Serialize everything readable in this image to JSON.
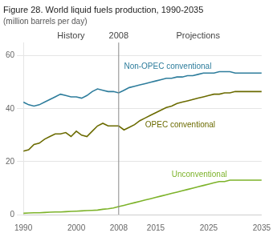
{
  "chart_data": {
    "type": "line",
    "title": "Figure 28. World liquid fuels production, 1990-2035",
    "subtitle": "(million barrels per day)",
    "x": [
      1990,
      1991,
      1992,
      1993,
      1994,
      1995,
      1996,
      1997,
      1998,
      1999,
      2000,
      2001,
      2002,
      2003,
      2004,
      2005,
      2006,
      2007,
      2008,
      2009,
      2010,
      2011,
      2012,
      2013,
      2014,
      2015,
      2016,
      2017,
      2018,
      2019,
      2020,
      2021,
      2022,
      2023,
      2024,
      2025,
      2026,
      2027,
      2028,
      2029,
      2030,
      2031,
      2032,
      2033,
      2034,
      2035
    ],
    "series": [
      {
        "name": "Non-OPEC conventional",
        "color": "#2e7d9c",
        "values": [
          42.5,
          41.5,
          41.0,
          41.5,
          42.5,
          43.5,
          44.5,
          45.5,
          45.0,
          44.5,
          44.5,
          44.0,
          45.0,
          46.5,
          47.5,
          47.0,
          46.5,
          46.5,
          46.0,
          47.0,
          48.0,
          48.5,
          49.0,
          49.5,
          50.0,
          50.5,
          51.0,
          51.5,
          51.5,
          52.0,
          52.0,
          52.5,
          52.5,
          53.0,
          53.5,
          53.5,
          53.5,
          54.0,
          54.0,
          54.0,
          53.5,
          53.5,
          53.5,
          53.5,
          53.5,
          53.5
        ]
      },
      {
        "name": "OPEC conventional",
        "color": "#6b6b00",
        "values": [
          24.0,
          24.5,
          26.5,
          27.0,
          28.5,
          29.5,
          30.5,
          30.5,
          31.0,
          29.5,
          31.5,
          30.0,
          29.5,
          31.5,
          33.5,
          34.5,
          33.5,
          33.5,
          33.5,
          32.0,
          33.0,
          34.0,
          35.5,
          36.5,
          37.5,
          38.5,
          39.5,
          40.5,
          41.0,
          42.0,
          42.5,
          43.0,
          43.5,
          44.0,
          44.5,
          45.0,
          45.5,
          45.5,
          46.0,
          46.0,
          46.5,
          46.5,
          46.5,
          46.5,
          46.5,
          46.5
        ]
      },
      {
        "name": "Unconventional",
        "color": "#7db32a",
        "values": [
          0.5,
          0.6,
          0.7,
          0.7,
          0.8,
          0.9,
          1.0,
          1.0,
          1.1,
          1.2,
          1.3,
          1.4,
          1.5,
          1.6,
          1.7,
          2.0,
          2.2,
          2.5,
          3.0,
          3.5,
          4.0,
          4.5,
          5.0,
          5.5,
          6.0,
          6.5,
          7.0,
          7.5,
          8.0,
          8.5,
          9.0,
          9.5,
          10.0,
          10.5,
          11.0,
          11.5,
          12.0,
          12.5,
          12.5,
          13.0,
          13.0,
          13.0,
          13.0,
          13.0,
          13.0,
          13.0
        ]
      }
    ],
    "xlim": [
      1990,
      2035
    ],
    "xticks": [
      1990,
      2000,
      2008,
      2015,
      2025,
      2035
    ],
    "ylim": [
      0,
      65
    ],
    "yticks": [
      0,
      20,
      40,
      60
    ],
    "grid": true,
    "vline": 2008,
    "annotations": [
      {
        "text": "History",
        "x": 1999
      },
      {
        "text": "2008",
        "x": 2008
      },
      {
        "text": "Projections",
        "x": 2023
      }
    ]
  }
}
